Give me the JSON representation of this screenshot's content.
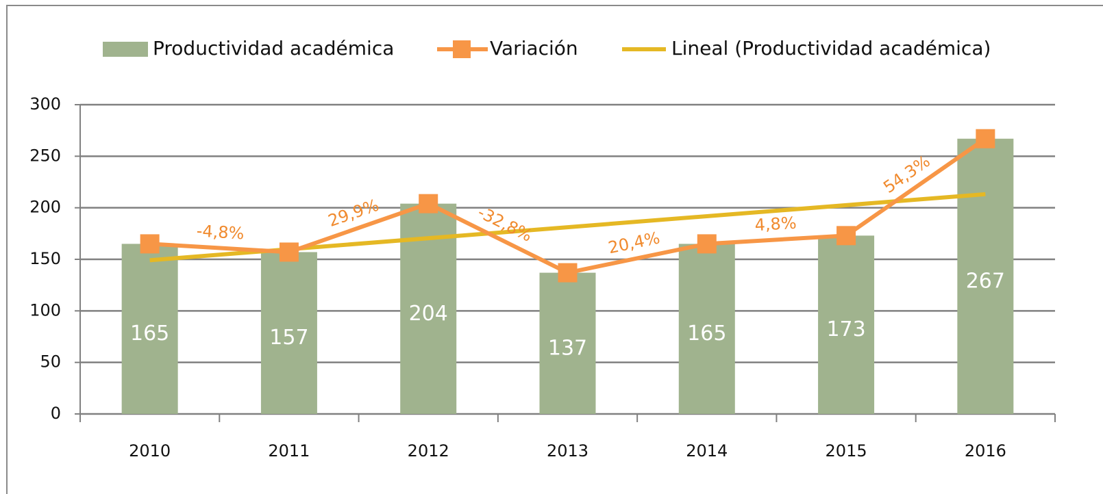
{
  "chart_data": {
    "type": "bar",
    "categories": [
      "2010",
      "2011",
      "2012",
      "2013",
      "2014",
      "2015",
      "2016"
    ],
    "series": [
      {
        "name": "Productividad académica",
        "color": "#a0b38e",
        "values": [
          165,
          157,
          204,
          137,
          165,
          173,
          267
        ]
      },
      {
        "name": "Variación",
        "color": "#f79646",
        "type": "line",
        "values": [
          165,
          157,
          204,
          137,
          165,
          173,
          267
        ]
      }
    ],
    "trendline": {
      "name": "Lineal (Productividad académica)",
      "color": "#e5b824"
    },
    "variation": {
      "values": [
        -4.8,
        29.9,
        -32.8,
        20.4,
        4.8,
        54.3
      ],
      "value_labels": [
        "-4,8%",
        "29,9%",
        "-32,8%",
        "20,4%",
        "4,8%",
        "54,3%"
      ]
    },
    "ylim": [
      0,
      300
    ],
    "yticks": [
      0,
      50,
      100,
      150,
      200,
      250,
      300
    ],
    "grid": true,
    "legend": "top"
  }
}
